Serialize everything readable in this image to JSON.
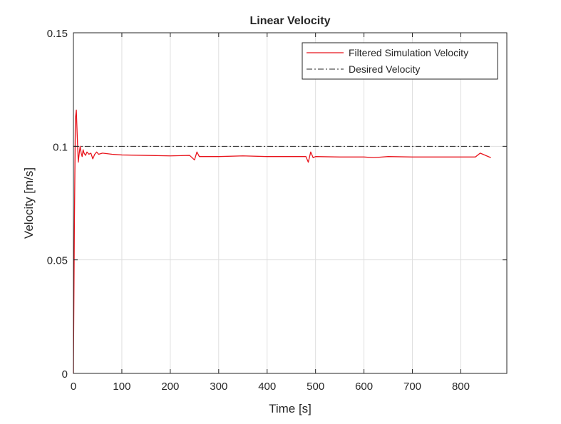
{
  "chart_data": {
    "type": "line",
    "title": "Linear Velocity",
    "xlabel": "Time [s]",
    "ylabel": "Velocity [m/s]",
    "xlim": [
      0,
      895
    ],
    "ylim": [
      0,
      0.15
    ],
    "grid": true,
    "legend_position": "top-right",
    "x_ticks": [
      0,
      100,
      200,
      300,
      400,
      500,
      600,
      700,
      800
    ],
    "x_tick_labels": [
      "0",
      "100",
      "200",
      "300",
      "400",
      "500",
      "600",
      "700",
      "800"
    ],
    "y_ticks": [
      0,
      0.05,
      0.1,
      0.15
    ],
    "y_tick_labels": [
      "0",
      "0.05",
      "0.1",
      "0.15"
    ],
    "series": [
      {
        "name": "Filtered Simulation Velocity",
        "style": "solid",
        "color": "#e8141c",
        "x": [
          0,
          2,
          4,
          6,
          8,
          10,
          12,
          14,
          16,
          18,
          20,
          22,
          25,
          28,
          32,
          36,
          40,
          44,
          48,
          52,
          60,
          80,
          100,
          150,
          200,
          240,
          250,
          255,
          260,
          270,
          300,
          350,
          400,
          450,
          480,
          485,
          490,
          495,
          500,
          550,
          600,
          620,
          650,
          700,
          750,
          800,
          830,
          840,
          862
        ],
        "y": [
          0,
          0.065,
          0.112,
          0.116,
          0.104,
          0.093,
          0.097,
          0.1,
          0.097,
          0.0955,
          0.0985,
          0.097,
          0.096,
          0.0975,
          0.0965,
          0.097,
          0.0945,
          0.0965,
          0.0975,
          0.0965,
          0.097,
          0.0965,
          0.0962,
          0.096,
          0.0958,
          0.096,
          0.094,
          0.0975,
          0.0955,
          0.0955,
          0.0955,
          0.0958,
          0.0955,
          0.0955,
          0.0955,
          0.093,
          0.0975,
          0.095,
          0.0955,
          0.0953,
          0.0953,
          0.095,
          0.0955,
          0.0953,
          0.0953,
          0.0953,
          0.0953,
          0.097,
          0.095
        ]
      },
      {
        "name": "Desired Velocity",
        "style": "dash-dot",
        "color": "#262626",
        "x": [
          0,
          862
        ],
        "y": [
          0.1,
          0.1
        ]
      }
    ]
  }
}
